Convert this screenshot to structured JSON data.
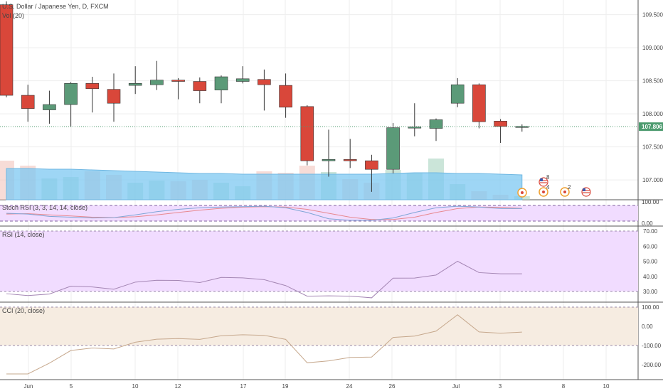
{
  "header": {
    "symbol_title": "U.S. Dollar / Japanese Yen, D, FXCM",
    "volume_label": "Vol (20)"
  },
  "price_axis": {
    "ticks": [
      "109.500",
      "109.000",
      "108.500",
      "108.000",
      "107.500",
      "107.000"
    ],
    "last_price": "107.806"
  },
  "stoch_axis": {
    "ticks": [
      "100.00",
      "0.00"
    ]
  },
  "rsi_axis": {
    "ticks": [
      "70.00",
      "60.00",
      "50.00",
      "40.00",
      "30.00"
    ]
  },
  "cci_axis": {
    "ticks": [
      "100.00",
      "0.00",
      "-100.00",
      "-200.00"
    ]
  },
  "time_axis": {
    "ticks": [
      "Jun",
      "5",
      "10",
      "12",
      "17",
      "19",
      "24",
      "26",
      "Jul",
      "3",
      "8",
      "10"
    ]
  },
  "panels": {
    "stoch_label": "Stoch RSI (3, 3, 14, 14, close)",
    "rsi_label": "RSI (14, close)",
    "cci_label": "CCI (20, close)"
  },
  "events": [
    {
      "type": "flag",
      "label": "8"
    },
    {
      "type": "earnings",
      "label": "4"
    },
    {
      "type": "earnings",
      "label": "2"
    },
    {
      "type": "flag",
      "label": ""
    }
  ],
  "colors": {
    "up": "#5b9a78",
    "down": "#d9473a",
    "volume_ma": "#7ec8f2",
    "panel_bg": "#f1dcff",
    "cci_bg": "#f6ece1",
    "last_price": "#4d9b6f"
  },
  "chart_data": {
    "type": "candlestick",
    "title": "U.S. Dollar / Japanese Yen, D, FXCM",
    "ylim": [
      106.7,
      109.7
    ],
    "candles": [
      {
        "o": 109.65,
        "h": 109.7,
        "l": 108.25,
        "c": 108.28
      },
      {
        "o": 108.28,
        "h": 108.44,
        "l": 107.88,
        "c": 108.08
      },
      {
        "o": 108.06,
        "h": 108.35,
        "l": 107.85,
        "c": 108.14
      },
      {
        "o": 108.14,
        "h": 108.48,
        "l": 107.8,
        "c": 108.46
      },
      {
        "o": 108.46,
        "h": 108.56,
        "l": 108.02,
        "c": 108.38
      },
      {
        "o": 108.37,
        "h": 108.61,
        "l": 107.88,
        "c": 108.16
      },
      {
        "o": 108.43,
        "h": 108.72,
        "l": 108.3,
        "c": 108.46
      },
      {
        "o": 108.44,
        "h": 108.8,
        "l": 108.36,
        "c": 108.51
      },
      {
        "o": 108.51,
        "h": 108.54,
        "l": 108.22,
        "c": 108.49
      },
      {
        "o": 108.49,
        "h": 108.55,
        "l": 108.16,
        "c": 108.35
      },
      {
        "o": 108.36,
        "h": 108.58,
        "l": 108.16,
        "c": 108.56
      },
      {
        "o": 108.49,
        "h": 108.72,
        "l": 108.46,
        "c": 108.53
      },
      {
        "o": 108.52,
        "h": 108.67,
        "l": 108.05,
        "c": 108.44
      },
      {
        "o": 108.43,
        "h": 108.61,
        "l": 107.94,
        "c": 108.1
      },
      {
        "o": 108.11,
        "h": 108.13,
        "l": 107.22,
        "c": 107.29
      },
      {
        "o": 107.29,
        "h": 107.76,
        "l": 107.05,
        "c": 107.31
      },
      {
        "o": 107.31,
        "h": 107.62,
        "l": 107.18,
        "c": 107.29
      },
      {
        "o": 107.29,
        "h": 107.38,
        "l": 106.82,
        "c": 107.16
      },
      {
        "o": 107.16,
        "h": 107.86,
        "l": 107.1,
        "c": 107.79
      },
      {
        "o": 107.79,
        "h": 108.16,
        "l": 107.66,
        "c": 107.8
      },
      {
        "o": 107.78,
        "h": 107.93,
        "l": 107.59,
        "c": 107.91
      },
      {
        "o": 108.16,
        "h": 108.54,
        "l": 108.1,
        "c": 108.44
      },
      {
        "o": 108.44,
        "h": 108.46,
        "l": 107.78,
        "c": 107.88
      },
      {
        "o": 107.89,
        "h": 107.92,
        "l": 107.56,
        "c": 107.81
      },
      {
        "o": 107.8,
        "h": 107.84,
        "l": 107.73,
        "c": 107.81
      }
    ],
    "volume": [
      0.55,
      0.48,
      0.3,
      0.32,
      0.4,
      0.35,
      0.24,
      0.27,
      0.26,
      0.28,
      0.24,
      0.19,
      0.4,
      0.38,
      0.48,
      0.39,
      0.29,
      0.24,
      0.42,
      0.38,
      0.58,
      0.22,
      0.12,
      0.07,
      0.05
    ],
    "volume_ma": [
      0.44,
      0.44,
      0.43,
      0.43,
      0.42,
      0.41,
      0.4,
      0.39,
      0.38,
      0.37,
      0.37,
      0.36,
      0.36,
      0.36,
      0.36,
      0.36,
      0.36,
      0.36,
      0.37,
      0.38,
      0.38,
      0.37,
      0.37,
      0.36,
      0.35
    ],
    "stoch_rsi": {
      "k": [
        50,
        45,
        30,
        25,
        20,
        22,
        40,
        60,
        75,
        85,
        90,
        92,
        95,
        85,
        55,
        15,
        5,
        5,
        20,
        55,
        85,
        95,
        90,
        80,
        80
      ],
      "d": [
        45,
        48,
        40,
        33,
        25,
        23,
        28,
        40,
        55,
        70,
        82,
        89,
        92,
        90,
        75,
        50,
        25,
        10,
        10,
        25,
        55,
        80,
        90,
        88,
        82
      ],
      "ylim": [
        0,
        100
      ]
    },
    "rsi": {
      "values": [
        28.5,
        27.3,
        28.3,
        33.5,
        33.0,
        31.5,
        36.2,
        37.4,
        37.3,
        35.9,
        39.3,
        39.0,
        37.8,
        33.9,
        26.9,
        27.1,
        26.9,
        25.8,
        38.8,
        38.9,
        40.9,
        50.0,
        42.5,
        41.7,
        41.7
      ],
      "ylim": [
        28,
        72
      ]
    },
    "cci": {
      "values": [
        -248,
        -248,
        -192,
        -126,
        -113,
        -118,
        -83,
        -67,
        -64,
        -68,
        -49,
        -44,
        -47,
        -68,
        -190,
        -180,
        -162,
        -160,
        -58,
        -51,
        -25,
        60,
        -29,
        -36,
        -30
      ],
      "ylim": [
        -260,
        105
      ]
    }
  }
}
